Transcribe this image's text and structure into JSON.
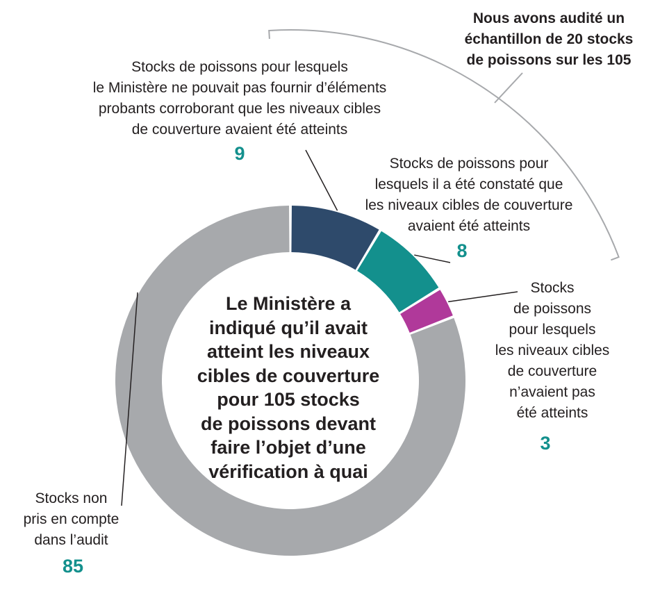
{
  "chart_data": {
    "type": "pie",
    "variant": "donut",
    "total": 105,
    "center_text": "Le Ministère a\nindiqué qu’il avait\natteint les niveaux\ncibles de couverture\npour 105 stocks\nde poissons devant\nfaire l’objet d’une\nvérification à quai",
    "bracket_label": "Nous avons audité un\néchantillon de 20 stocks\nde poissons sur les 105",
    "slices": [
      {
        "id": "no-evidence",
        "label": "Stocks de poissons pour lesquels\nle Ministère ne pouvait pas fournir d’éléments\nprobants corroborant que les niveaux cibles\nde couverture avaient été atteints",
        "value": 9,
        "color": "#2e4a6b"
      },
      {
        "id": "met",
        "label": "Stocks de poissons pour\nlesquels il a été constaté que\nles niveaux cibles de couverture\navaient été atteints",
        "value": 8,
        "color": "#13908d"
      },
      {
        "id": "not-met",
        "label": "Stocks\nde poissons\npour lesquels\nles niveaux cibles\nde couverture\nn’avaient pas\nété atteints",
        "value": 3,
        "color": "#b0399a"
      },
      {
        "id": "excluded",
        "label": "Stocks non\npris en compte\ndans l’audit",
        "value": 85,
        "color": "#a7a9ac"
      }
    ],
    "value_color": "#13908d"
  }
}
